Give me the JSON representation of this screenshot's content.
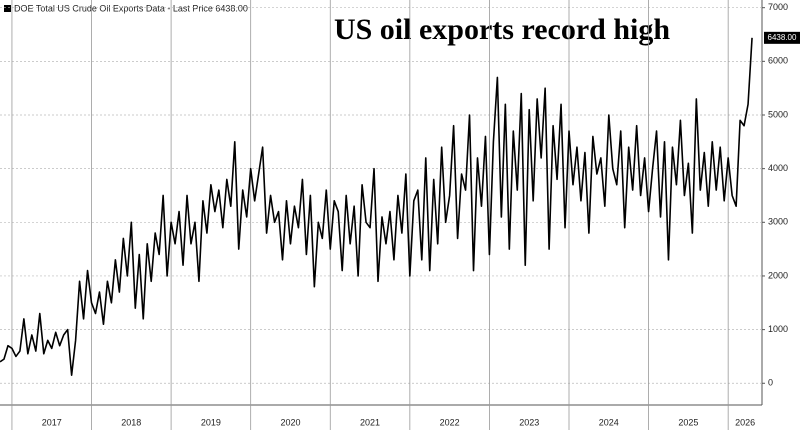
{
  "chart_data": {
    "type": "line",
    "title": "US oil exports record high",
    "last_label": "6438.00",
    "grid": true,
    "series": [
      {
        "name": "DOE Total US Crude Oil Exports Data - Last Price 6438.00",
        "color": "#000000",
        "values": [
          400,
          450,
          700,
          650,
          500,
          600,
          1200,
          550,
          900,
          600,
          1300,
          550,
          800,
          650,
          950,
          700,
          900,
          1000,
          150,
          800,
          1900,
          1200,
          2100,
          1500,
          1300,
          1700,
          1100,
          1900,
          1500,
          2300,
          1700,
          2700,
          2000,
          3000,
          1400,
          2400,
          1200,
          2600,
          1900,
          2800,
          2400,
          3500,
          2000,
          3000,
          2600,
          3200,
          2200,
          3500,
          2600,
          3000,
          1900,
          3400,
          2800,
          3700,
          3200,
          3600,
          2900,
          3800,
          3300,
          4500,
          2500,
          3600,
          3100,
          4000,
          3400,
          3900,
          4400,
          2800,
          3500,
          3000,
          3200,
          2300,
          3400,
          2600,
          3300,
          2900,
          3800,
          2400,
          3500,
          1800,
          3000,
          2700,
          3600,
          2500,
          3400,
          3200,
          2100,
          3500,
          2600,
          3300,
          2000,
          3700,
          3000,
          2900,
          4000,
          1900,
          3100,
          2600,
          3200,
          2300,
          3500,
          2800,
          3900,
          2000,
          3400,
          3600,
          2300,
          4200,
          2100,
          3800,
          2600,
          4400,
          3000,
          3500,
          4800,
          2700,
          3900,
          3600,
          5000,
          2100,
          4200,
          3300,
          4600,
          2400,
          4500,
          5700,
          3100,
          5200,
          2500,
          4700,
          3600,
          5400,
          2200,
          5100,
          3400,
          5300,
          4200,
          5500,
          2500,
          4800,
          3800,
          5200,
          2900,
          4700,
          3700,
          4400,
          3400,
          4300,
          2800,
          4600,
          3900,
          4200,
          3300,
          5000,
          4000,
          3700,
          4700,
          2900,
          4400,
          3600,
          4800,
          3500,
          4200,
          3200,
          4000,
          4700,
          3100,
          4500,
          2300,
          4400,
          3700,
          4900,
          3500,
          4100,
          2800,
          5300,
          3600,
          4300,
          3300,
          4500,
          3600,
          4400,
          3400,
          4200,
          3500,
          3300,
          4900,
          4800,
          5200,
          6438
        ]
      }
    ],
    "x": [
      2016.85,
      2016.9,
      2016.95,
      2017,
      2017.05,
      2017.1,
      2017.15,
      2017.2,
      2017.25,
      2017.3,
      2017.35,
      2017.4,
      2017.45,
      2017.5,
      2017.55,
      2017.6,
      2017.65,
      2017.7,
      2017.75,
      2017.8,
      2017.85,
      2017.9,
      2017.95,
      2018,
      2018.05,
      2018.1,
      2018.15,
      2018.2,
      2018.25,
      2018.3,
      2018.35,
      2018.4,
      2018.45,
      2018.5,
      2018.55,
      2018.6,
      2018.65,
      2018.7,
      2018.75,
      2018.8,
      2018.85,
      2018.9,
      2018.95,
      2019,
      2019.05,
      2019.1,
      2019.15,
      2019.2,
      2019.25,
      2019.3,
      2019.35,
      2019.4,
      2019.45,
      2019.5,
      2019.55,
      2019.6,
      2019.65,
      2019.7,
      2019.75,
      2019.8,
      2019.85,
      2019.9,
      2019.95,
      2020,
      2020.05,
      2020.1,
      2020.15,
      2020.2,
      2020.25,
      2020.3,
      2020.35,
      2020.4,
      2020.45,
      2020.5,
      2020.55,
      2020.6,
      2020.65,
      2020.7,
      2020.75,
      2020.8,
      2020.85,
      2020.9,
      2020.95,
      2021,
      2021.05,
      2021.1,
      2021.15,
      2021.2,
      2021.25,
      2021.3,
      2021.35,
      2021.4,
      2021.45,
      2021.5,
      2021.55,
      2021.6,
      2021.65,
      2021.7,
      2021.75,
      2021.8,
      2021.85,
      2021.9,
      2021.95,
      2022,
      2022.05,
      2022.1,
      2022.15,
      2022.2,
      2022.25,
      2022.3,
      2022.35,
      2022.4,
      2022.45,
      2022.5,
      2022.55,
      2022.6,
      2022.65,
      2022.7,
      2022.75,
      2022.8,
      2022.85,
      2022.9,
      2022.95,
      2023,
      2023.05,
      2023.1,
      2023.15,
      2023.2,
      2023.25,
      2023.3,
      2023.35,
      2023.4,
      2023.45,
      2023.5,
      2023.55,
      2023.6,
      2023.65,
      2023.7,
      2023.75,
      2023.8,
      2023.85,
      2023.9,
      2023.95,
      2024,
      2024.05,
      2024.1,
      2024.15,
      2024.2,
      2024.25,
      2024.3,
      2024.35,
      2024.4,
      2024.45,
      2024.5,
      2024.55,
      2024.6,
      2024.65,
      2024.7,
      2024.75,
      2024.8,
      2024.85,
      2024.9,
      2024.95,
      2025,
      2025.05,
      2025.1,
      2025.15,
      2025.2,
      2025.25,
      2025.3,
      2025.35,
      2025.4,
      2025.45,
      2025.5,
      2025.55,
      2025.6,
      2025.65,
      2025.7,
      2025.75,
      2025.8,
      2025.85,
      2025.9,
      2025.95,
      2026,
      2026.05,
      2026.1,
      2026.15,
      2026.2,
      2026.25,
      2026.3
    ],
    "xlim": [
      2016.85,
      2026.4
    ],
    "xticks": [
      2017,
      2018,
      2019,
      2020,
      2021,
      2022,
      2023,
      2024,
      2025,
      2026
    ],
    "ylim": [
      -200,
      7050
    ],
    "yticks": [
      0,
      1000,
      2000,
      3000,
      4000,
      5000,
      6000,
      7000
    ]
  }
}
